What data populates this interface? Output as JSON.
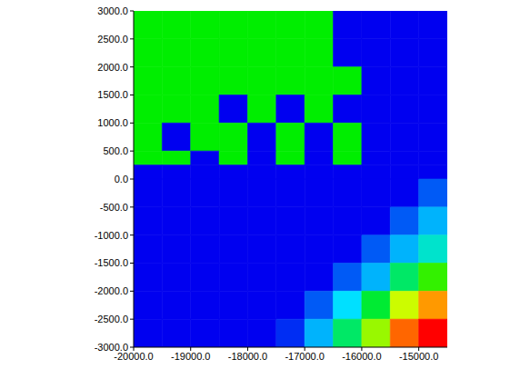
{
  "chart_data": {
    "type": "heatmap",
    "xlim": [
      -20000,
      -14500
    ],
    "ylim": [
      -3000,
      3000
    ],
    "xticks": [
      {
        "value": -20000,
        "label": "-20000.0"
      },
      {
        "value": -19000,
        "label": "-19000.0"
      },
      {
        "value": -18000,
        "label": "-18000.0"
      },
      {
        "value": -17000,
        "label": "-17000.0"
      },
      {
        "value": -16000,
        "label": "-16000.0"
      },
      {
        "value": -15000,
        "label": "-15000.0"
      }
    ],
    "yticks": [
      {
        "value": 3000,
        "label": "3000.0"
      },
      {
        "value": 2500,
        "label": "2500.0"
      },
      {
        "value": 2000,
        "label": "2000.0"
      },
      {
        "value": 1500,
        "label": "1500.0"
      },
      {
        "value": 1000,
        "label": "1000.0"
      },
      {
        "value": 500,
        "label": "500.0"
      },
      {
        "value": 0,
        "label": "0.0"
      },
      {
        "value": -500,
        "label": "-500.0"
      },
      {
        "value": -1000,
        "label": "-1000.0"
      },
      {
        "value": -1500,
        "label": "-1500.0"
      },
      {
        "value": -2000,
        "label": "-2000.0"
      },
      {
        "value": -2500,
        "label": "-2500.0"
      },
      {
        "value": -3000,
        "label": "-3000.0"
      }
    ],
    "x_edges": [
      -20000,
      -19500,
      -19000,
      -18500,
      -18000,
      -17500,
      -17000,
      -16500,
      -16000,
      -15500,
      -15000,
      -14500
    ],
    "y_edges": [
      3000,
      2500,
      2000,
      1500,
      1000,
      500,
      250,
      0,
      -500,
      -1000,
      -1500,
      -2000,
      -2500,
      -3000
    ],
    "zlim": [
      0,
      1
    ],
    "cells": [
      [
        0.5,
        0.5,
        0.5,
        0.5,
        0.5,
        0.5,
        0.5,
        0,
        0,
        0,
        0
      ],
      [
        0.5,
        0.5,
        0.5,
        0.5,
        0.5,
        0.5,
        0.5,
        0,
        0,
        0,
        0
      ],
      [
        0.5,
        0.5,
        0.5,
        0.5,
        0.5,
        0.5,
        0.5,
        0.5,
        0,
        0,
        0
      ],
      [
        0.5,
        0.5,
        0.5,
        0,
        0.5,
        0,
        0.5,
        0,
        0,
        0,
        0
      ],
      [
        0.5,
        0,
        0.5,
        0.5,
        0,
        0.5,
        0,
        0.5,
        0,
        0,
        0
      ],
      [
        0.5,
        0.5,
        0,
        0.5,
        0,
        0.5,
        0,
        0.5,
        0,
        0,
        0
      ],
      [
        0,
        0,
        0,
        0,
        0,
        0,
        0,
        0,
        0,
        0,
        0
      ],
      [
        0,
        0,
        0,
        0,
        0,
        0,
        0,
        0,
        0,
        0,
        0.1
      ],
      [
        0,
        0,
        0,
        0,
        0,
        0,
        0,
        0,
        0,
        0.1,
        0.2
      ],
      [
        0,
        0,
        0,
        0,
        0,
        0,
        0,
        0,
        0.1,
        0.2,
        0.3
      ],
      [
        0,
        0,
        0,
        0,
        0,
        0,
        0,
        0.1,
        0.2,
        0.4,
        0.55
      ],
      [
        0,
        0,
        0,
        0,
        0,
        0,
        0.1,
        0.25,
        0.45,
        0.7,
        0.85
      ],
      [
        0,
        0,
        0,
        0,
        0,
        0.05,
        0.2,
        0.4,
        0.65,
        0.9,
        1.0
      ]
    ]
  }
}
